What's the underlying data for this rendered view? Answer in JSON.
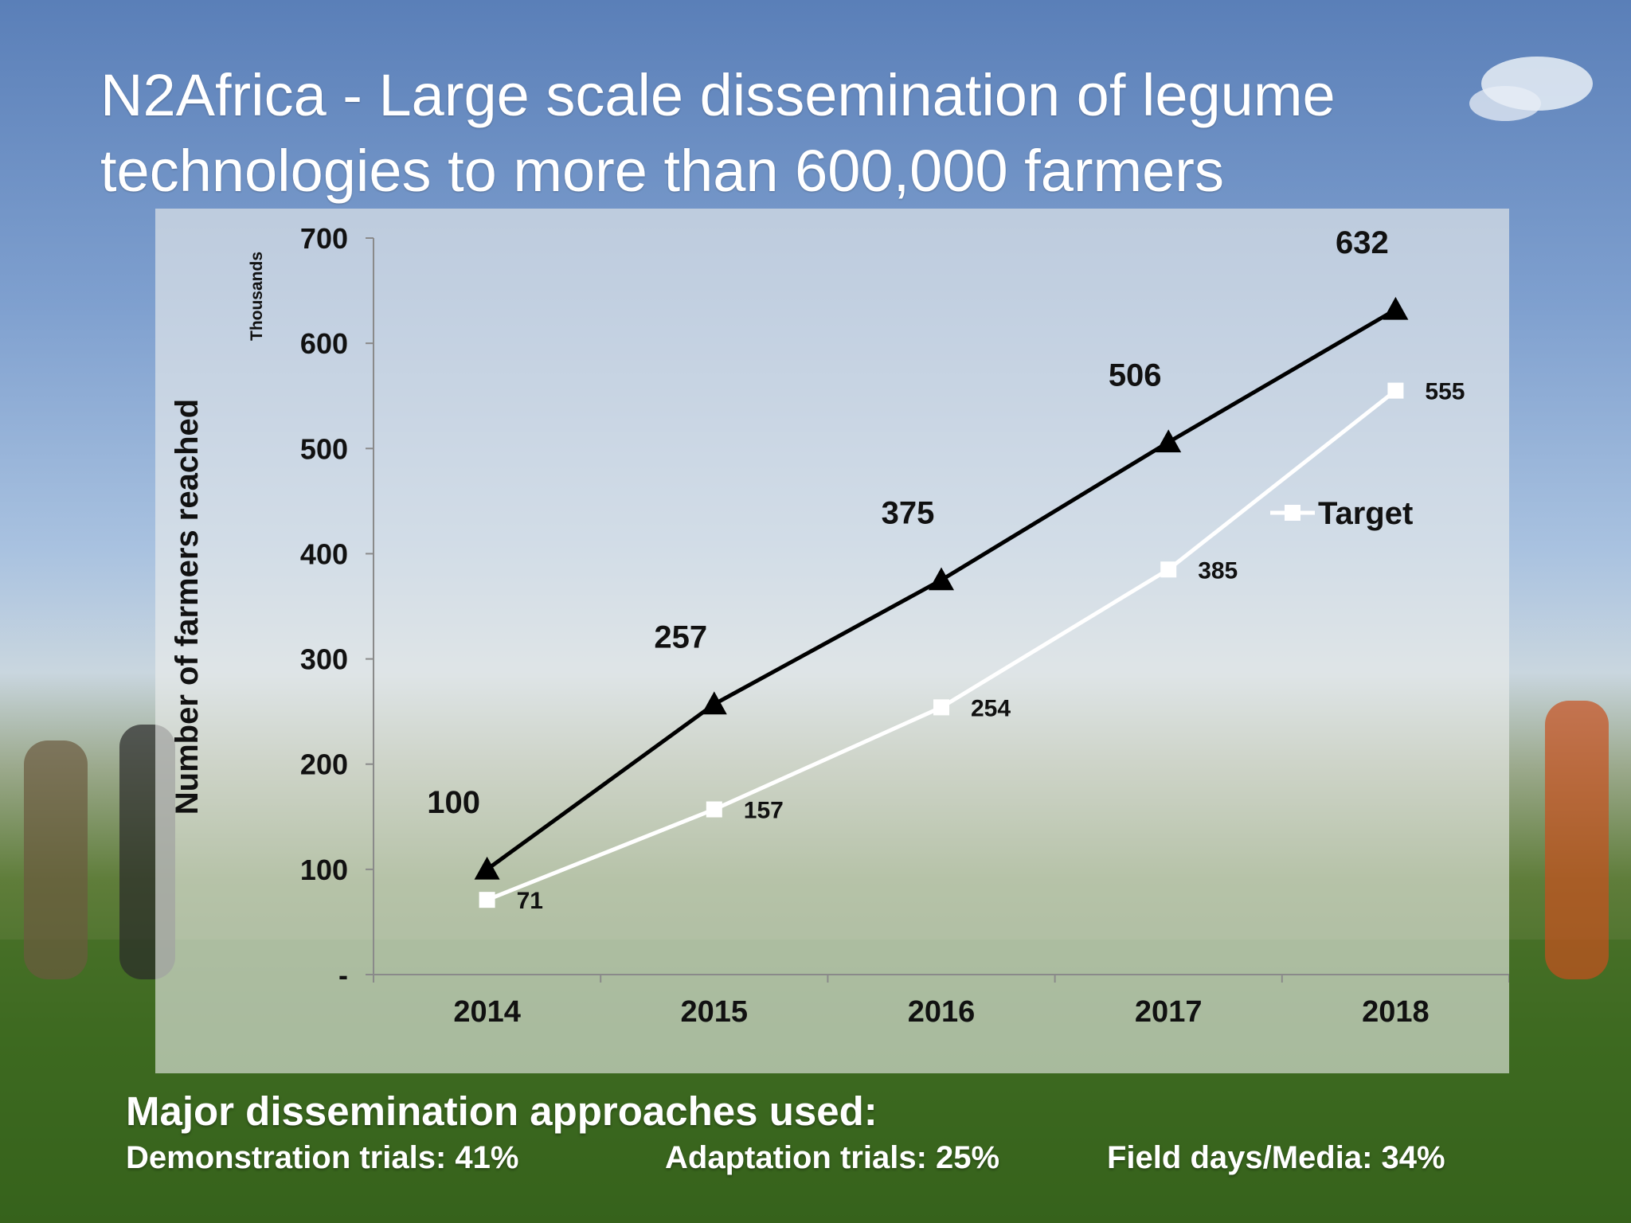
{
  "slide": {
    "title": "N2Africa - Large scale dissemination of legume technologies to more than 600,000 farmers"
  },
  "approaches": {
    "title": "Major dissemination approaches used:",
    "items": [
      "Demonstration trials: 41%",
      "Adaptation trials: 25%",
      "Field days/Media: 34%"
    ]
  },
  "colors": {
    "reached_line": "#000000",
    "target_line": "#ffffff",
    "axis_text": "#111111"
  },
  "chart_data": {
    "type": "line",
    "categories": [
      "2014",
      "2015",
      "2016",
      "2017",
      "2018"
    ],
    "ylabel": "Number of farmers reached",
    "yunit_label": "Thousands",
    "ylim": [
      0,
      700
    ],
    "yticks": [
      0,
      100,
      200,
      300,
      400,
      500,
      600,
      700
    ],
    "ytick_labels": [
      "-",
      "100",
      "200",
      "300",
      "400",
      "500",
      "600",
      "700"
    ],
    "grid": false,
    "legend": "right",
    "series": [
      {
        "marker": "triangle",
        "values": [
          100,
          257,
          375,
          506,
          632
        ],
        "data_labels": [
          "100",
          "257",
          "375",
          "506",
          "632"
        ]
      },
      {
        "name": "Target",
        "marker": "square",
        "values": [
          71,
          157,
          254,
          385,
          555
        ],
        "data_labels": [
          "71",
          "157",
          "254",
          "385",
          "555"
        ]
      }
    ]
  }
}
